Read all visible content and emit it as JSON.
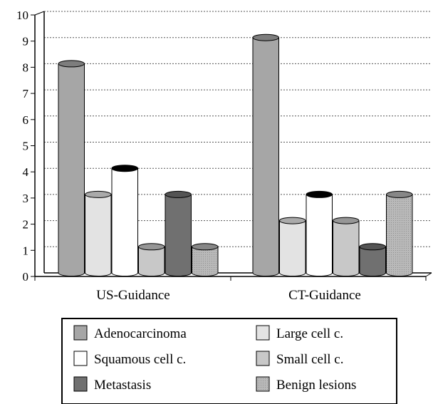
{
  "chart_data": {
    "type": "bar",
    "title": "",
    "xlabel": "",
    "ylabel": "",
    "ylim": [
      0,
      10
    ],
    "yticks": [
      "0",
      "1",
      "2",
      "3",
      "4",
      "5",
      "6",
      "7",
      "8",
      "9",
      "10"
    ],
    "categories": [
      "US-Guidance",
      "CT-Guidance"
    ],
    "grid": "horizontal dashed",
    "legend_placement": "bottom",
    "series": [
      {
        "name": "Adenocarcinoma",
        "values": [
          8,
          9
        ],
        "color": "#a6a6a6"
      },
      {
        "name": "Large cell c.",
        "values": [
          3,
          2
        ],
        "color": "#e3e3e3"
      },
      {
        "name": "Squamous cell c.",
        "values": [
          4,
          3
        ],
        "color": "#ffffff"
      },
      {
        "name": "Small cell c.",
        "values": [
          1,
          2
        ],
        "color": "#c8c8c8"
      },
      {
        "name": "Metastasis",
        "values": [
          3,
          1
        ],
        "color": "#707070"
      },
      {
        "name": "Benign lesions",
        "values": [
          1,
          3
        ],
        "color": "#b4b4b4"
      }
    ]
  }
}
